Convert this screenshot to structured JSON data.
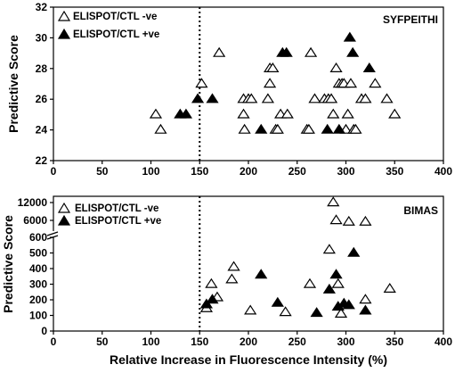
{
  "chart_data": [
    {
      "type": "scatter",
      "panel_label": "SYFPEITHI",
      "ylabel": "Predictive Score",
      "xlim": [
        0,
        400
      ],
      "ylim": [
        22,
        32
      ],
      "x_ticks": [
        "0",
        "50",
        "100",
        "150",
        "200",
        "250",
        "300",
        "350",
        "400"
      ],
      "y_ticks": [
        "22",
        "24",
        "26",
        "28",
        "30",
        "32"
      ],
      "threshold_x": 150,
      "legend": [
        "ELISPOT/CTL -ve",
        "ELISPOT/CTL +ve"
      ],
      "series": [
        {
          "name": "ELISPOT/CTL -ve",
          "marker": "open-triangle",
          "points": [
            [
              105,
              25
            ],
            [
              110,
              24
            ],
            [
              152,
              27
            ],
            [
              170,
              29
            ],
            [
              195,
              26
            ],
            [
              195,
              25
            ],
            [
              196,
              24
            ],
            [
              200,
              26
            ],
            [
              203,
              26
            ],
            [
              220,
              26
            ],
            [
              222,
              27
            ],
            [
              222,
              28
            ],
            [
              225,
              28
            ],
            [
              228,
              24
            ],
            [
              230,
              24
            ],
            [
              233,
              25
            ],
            [
              240,
              25
            ],
            [
              260,
              24
            ],
            [
              262,
              24
            ],
            [
              264,
              29
            ],
            [
              268,
              26
            ],
            [
              278,
              26
            ],
            [
              282,
              26
            ],
            [
              285,
              26
            ],
            [
              287,
              25
            ],
            [
              290,
              28
            ],
            [
              293,
              27
            ],
            [
              296,
              27
            ],
            [
              298,
              27
            ],
            [
              300,
              24
            ],
            [
              302,
              25
            ],
            [
              305,
              27
            ],
            [
              308,
              24
            ],
            [
              310,
              24
            ],
            [
              316,
              26
            ],
            [
              320,
              26
            ],
            [
              330,
              27
            ],
            [
              342,
              26
            ],
            [
              350,
              25
            ]
          ]
        },
        {
          "name": "ELISPOT/CTL +ve",
          "marker": "filled-triangle",
          "points": [
            [
              130,
              25
            ],
            [
              136,
              25
            ],
            [
              148,
              26
            ],
            [
              163,
              26
            ],
            [
              213,
              24
            ],
            [
              235,
              29
            ],
            [
              239,
              29
            ],
            [
              281,
              24
            ],
            [
              293,
              24
            ],
            [
              304,
              30
            ],
            [
              307,
              29
            ],
            [
              324,
              28
            ]
          ]
        }
      ]
    },
    {
      "type": "scatter",
      "panel_label": "BIMAS",
      "ylabel": "Predictive Score",
      "xlabel": "Relative Increase in Fluorescence Intensity (%)",
      "xlim": [
        0,
        400
      ],
      "y_scale": "broken",
      "y_ticks_lower": [
        "0",
        "100",
        "200",
        "300",
        "400",
        "500",
        "600"
      ],
      "y_ticks_upper": [
        "6000",
        "12000"
      ],
      "x_ticks": [
        "0",
        "50",
        "100",
        "150",
        "200",
        "250",
        "300",
        "350",
        "400"
      ],
      "threshold_x": 150,
      "legend": [
        "ELISPOT/CTL -ve",
        "ELISPOT/CTL +ve"
      ],
      "series": [
        {
          "name": "ELISPOT/CTL -ve",
          "marker": "open-triangle",
          "points": [
            [
              157,
              145
            ],
            [
              162,
              300
            ],
            [
              168,
              215
            ],
            [
              183,
              330
            ],
            [
              185,
              410
            ],
            [
              202,
              130
            ],
            [
              238,
              120
            ],
            [
              263,
              300
            ],
            [
              283,
              520
            ],
            [
              287,
              12000
            ],
            [
              290,
              6000
            ],
            [
              292,
              300
            ],
            [
              295,
              110
            ],
            [
              303,
              5500
            ],
            [
              320,
              5500
            ],
            [
              320,
              200
            ],
            [
              345,
              270
            ]
          ]
        },
        {
          "name": "ELISPOT/CTL +ve",
          "marker": "filled-triangle",
          "points": [
            [
              157,
              170
            ],
            [
              163,
              200
            ],
            [
              213,
              360
            ],
            [
              230,
              180
            ],
            [
              270,
              115
            ],
            [
              283,
              265
            ],
            [
              290,
              360
            ],
            [
              292,
              155
            ],
            [
              298,
              175
            ],
            [
              303,
              165
            ],
            [
              308,
              500
            ],
            [
              320,
              130
            ]
          ]
        }
      ]
    }
  ]
}
